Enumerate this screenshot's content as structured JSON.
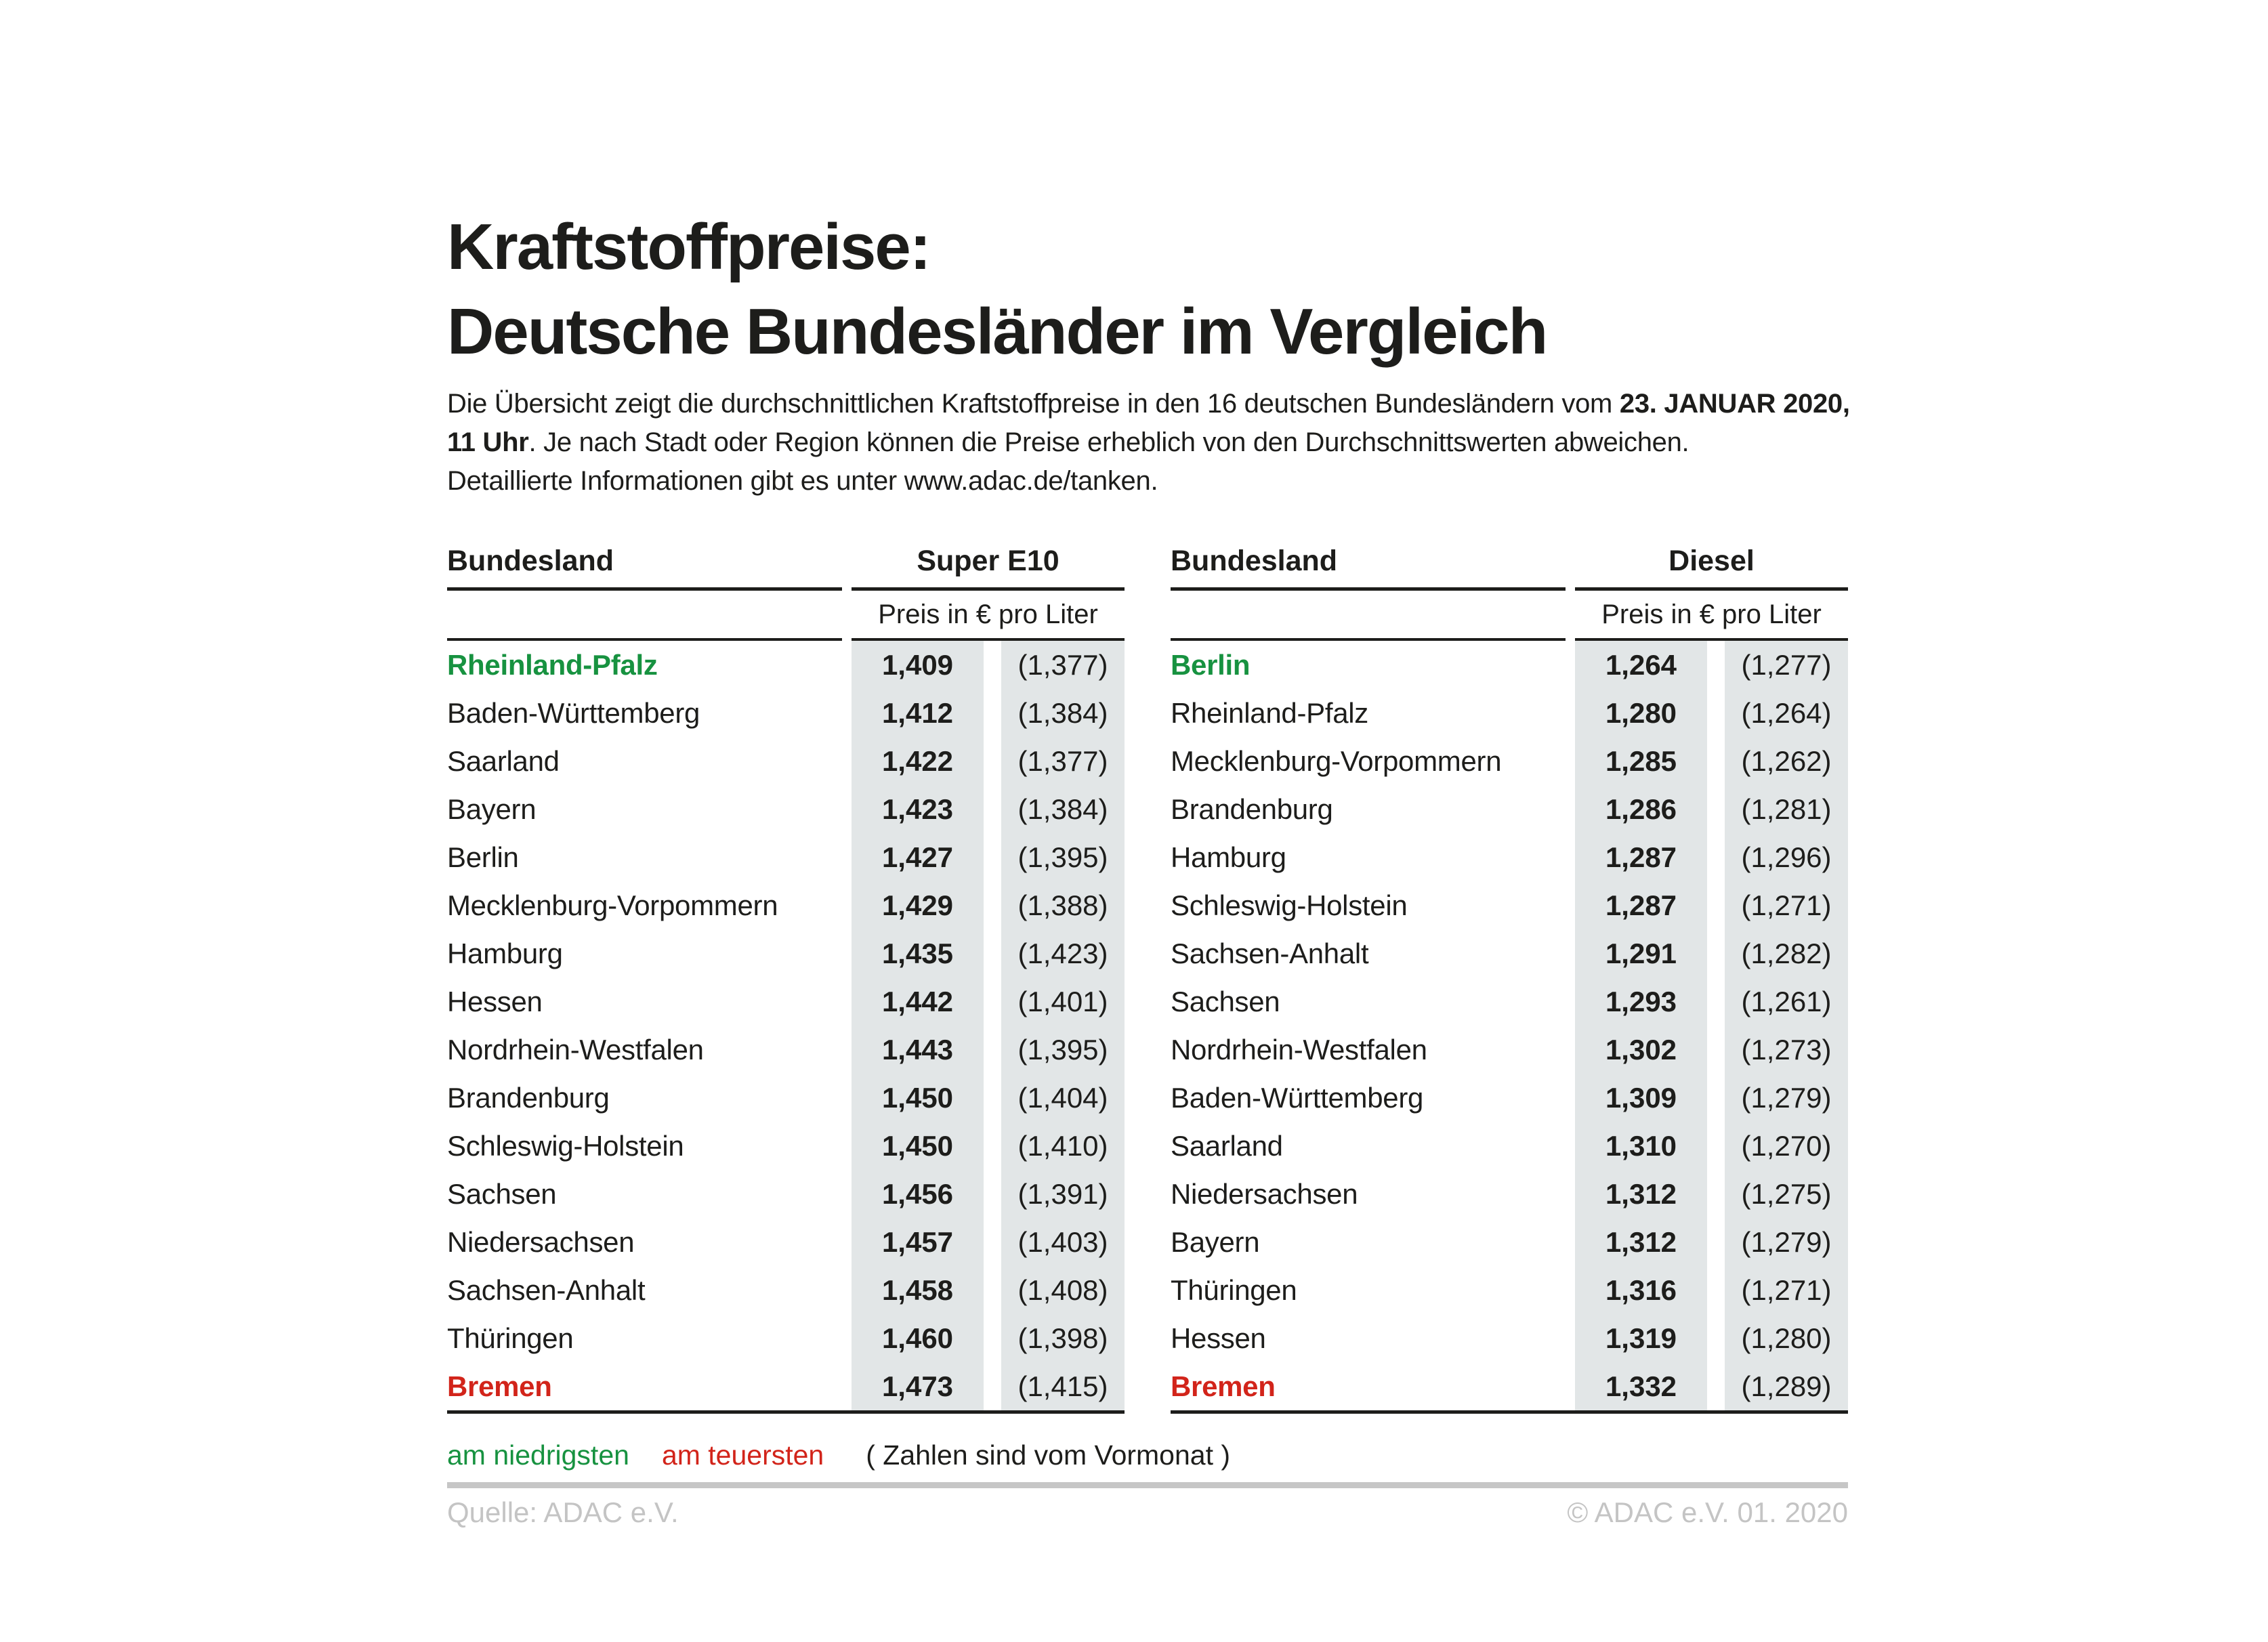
{
  "title": {
    "line1": "Kraftstoffpreise:",
    "line2": "Deutsche Bundesländer im Vergleich"
  },
  "intro": {
    "line1_normal": "Die Übersicht zeigt die durchschnittlichen Kraftstoffpreise in den 16 deutschen Bundesländern vom ",
    "line1_bold": "23. JANUAR 2020,",
    "line2_bold": "11 Uhr",
    "line2_normal": ". Je nach Stadt oder Region können die Preise erheblich von den Durchschnittswerten abweichen.",
    "line3": "Detaillierte Informationen gibt es unter www.adac.de/tanken."
  },
  "tables": [
    {
      "col_header": "Bundesland",
      "fuel_header": "Super E10",
      "unit_header": "Preis in € pro Liter",
      "rows": [
        {
          "name": "Rheinland-Pfalz",
          "price": "1,409",
          "prev": "(1,377)",
          "highlight": "lowest"
        },
        {
          "name": "Baden-Württemberg",
          "price": "1,412",
          "prev": "(1,384)"
        },
        {
          "name": "Saarland",
          "price": "1,422",
          "prev": "(1,377)"
        },
        {
          "name": "Bayern",
          "price": "1,423",
          "prev": "(1,384)"
        },
        {
          "name": "Berlin",
          "price": "1,427",
          "prev": "(1,395)"
        },
        {
          "name": "Mecklenburg-Vorpommern",
          "price": "1,429",
          "prev": "(1,388)"
        },
        {
          "name": "Hamburg",
          "price": "1,435",
          "prev": "(1,423)"
        },
        {
          "name": "Hessen",
          "price": "1,442",
          "prev": "(1,401)"
        },
        {
          "name": "Nordrhein-Westfalen",
          "price": "1,443",
          "prev": "(1,395)"
        },
        {
          "name": "Brandenburg",
          "price": "1,450",
          "prev": "(1,404)"
        },
        {
          "name": "Schleswig-Holstein",
          "price": "1,450",
          "prev": "(1,410)"
        },
        {
          "name": "Sachsen",
          "price": "1,456",
          "prev": "(1,391)"
        },
        {
          "name": "Niedersachsen",
          "price": "1,457",
          "prev": "(1,403)"
        },
        {
          "name": "Sachsen-Anhalt",
          "price": "1,458",
          "prev": "(1,408)"
        },
        {
          "name": "Thüringen",
          "price": "1,460",
          "prev": "(1,398)"
        },
        {
          "name": "Bremen",
          "price": "1,473",
          "prev": "(1,415)",
          "highlight": "highest"
        }
      ]
    },
    {
      "col_header": "Bundesland",
      "fuel_header": "Diesel",
      "unit_header": "Preis in € pro Liter",
      "rows": [
        {
          "name": "Berlin",
          "price": "1,264",
          "prev": "(1,277)",
          "highlight": "lowest"
        },
        {
          "name": "Rheinland-Pfalz",
          "price": "1,280",
          "prev": "(1,264)"
        },
        {
          "name": "Mecklenburg-Vorpommern",
          "price": "1,285",
          "prev": "(1,262)"
        },
        {
          "name": "Brandenburg",
          "price": "1,286",
          "prev": "(1,281)"
        },
        {
          "name": "Hamburg",
          "price": "1,287",
          "prev": "(1,296)"
        },
        {
          "name": "Schleswig-Holstein",
          "price": "1,287",
          "prev": "(1,271)"
        },
        {
          "name": "Sachsen-Anhalt",
          "price": "1,291",
          "prev": "(1,282)"
        },
        {
          "name": "Sachsen",
          "price": "1,293",
          "prev": "(1,261)"
        },
        {
          "name": "Nordrhein-Westfalen",
          "price": "1,302",
          "prev": "(1,273)"
        },
        {
          "name": "Baden-Württemberg",
          "price": "1,309",
          "prev": "(1,279)"
        },
        {
          "name": "Saarland",
          "price": "1,310",
          "prev": "(1,270)"
        },
        {
          "name": "Niedersachsen",
          "price": "1,312",
          "prev": "(1,275)"
        },
        {
          "name": "Bayern",
          "price": "1,312",
          "prev": "(1,279)"
        },
        {
          "name": "Thüringen",
          "price": "1,316",
          "prev": "(1,271)"
        },
        {
          "name": "Hessen",
          "price": "1,319",
          "prev": "(1,280)"
        },
        {
          "name": "Bremen",
          "price": "1,332",
          "prev": "(1,289)",
          "highlight": "highest"
        }
      ]
    }
  ],
  "legend": {
    "lowest_label": "am niedrigsten",
    "highest_label": "am teuersten",
    "note": "( Zahlen sind vom Vormonat )"
  },
  "footer": {
    "source": "Quelle: ADAC e.V.",
    "copyright": "© ADAC e.V. 01. 2020"
  },
  "colors": {
    "lowest_green": "#179240",
    "highest_red": "#d2241a",
    "value_column_bg": "#e2e6e7",
    "rule_black": "#1d1d1b",
    "footer_gray": "#c4c4c4"
  },
  "chart_data": [
    {
      "type": "table",
      "title": "Super E10",
      "unit": "Preis in € pro Liter",
      "columns": [
        "Bundesland",
        "Preis",
        "Vormonat"
      ],
      "rows": [
        [
          "Rheinland-Pfalz",
          1.409,
          1.377
        ],
        [
          "Baden-Württemberg",
          1.412,
          1.384
        ],
        [
          "Saarland",
          1.422,
          1.377
        ],
        [
          "Bayern",
          1.423,
          1.384
        ],
        [
          "Berlin",
          1.427,
          1.395
        ],
        [
          "Mecklenburg-Vorpommern",
          1.429,
          1.388
        ],
        [
          "Hamburg",
          1.435,
          1.423
        ],
        [
          "Hessen",
          1.442,
          1.401
        ],
        [
          "Nordrhein-Westfalen",
          1.443,
          1.395
        ],
        [
          "Brandenburg",
          1.45,
          1.404
        ],
        [
          "Schleswig-Holstein",
          1.45,
          1.41
        ],
        [
          "Sachsen",
          1.456,
          1.391
        ],
        [
          "Niedersachsen",
          1.457,
          1.403
        ],
        [
          "Sachsen-Anhalt",
          1.458,
          1.408
        ],
        [
          "Thüringen",
          1.46,
          1.398
        ],
        [
          "Bremen",
          1.473,
          1.415
        ]
      ],
      "notes": "Rheinland-Pfalz am niedrigsten (grün), Bremen am teuersten (rot); Zahlen in Klammern sind vom Vormonat"
    },
    {
      "type": "table",
      "title": "Diesel",
      "unit": "Preis in € pro Liter",
      "columns": [
        "Bundesland",
        "Preis",
        "Vormonat"
      ],
      "rows": [
        [
          "Berlin",
          1.264,
          1.277
        ],
        [
          "Rheinland-Pfalz",
          1.28,
          1.264
        ],
        [
          "Mecklenburg-Vorpommern",
          1.285,
          1.262
        ],
        [
          "Brandenburg",
          1.286,
          1.281
        ],
        [
          "Hamburg",
          1.287,
          1.296
        ],
        [
          "Schleswig-Holstein",
          1.287,
          1.271
        ],
        [
          "Sachsen-Anhalt",
          1.291,
          1.282
        ],
        [
          "Sachsen",
          1.293,
          1.261
        ],
        [
          "Nordrhein-Westfalen",
          1.302,
          1.273
        ],
        [
          "Baden-Württemberg",
          1.309,
          1.279
        ],
        [
          "Saarland",
          1.31,
          1.27
        ],
        [
          "Niedersachsen",
          1.312,
          1.275
        ],
        [
          "Bayern",
          1.312,
          1.279
        ],
        [
          "Thüringen",
          1.316,
          1.271
        ],
        [
          "Hessen",
          1.319,
          1.28
        ],
        [
          "Bremen",
          1.332,
          1.289
        ]
      ],
      "notes": "Berlin am niedrigsten (grün), Bremen am teuersten (rot); Zahlen in Klammern sind vom Vormonat"
    }
  ]
}
